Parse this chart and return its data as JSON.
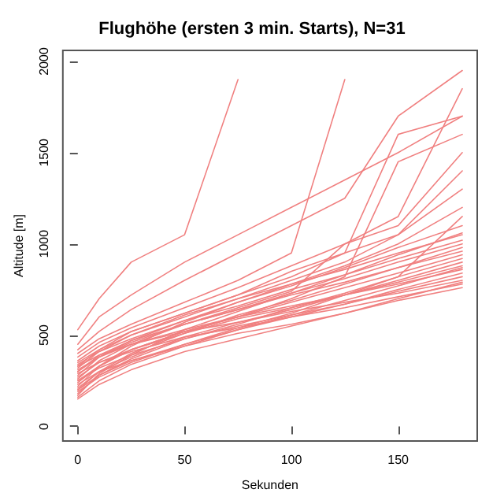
{
  "chart_data": {
    "type": "line",
    "title": "Flughöhe (ersten 3 min. Starts), N=31",
    "xlabel": "Sekunden",
    "ylabel": "Altitude [m]",
    "x": [
      0,
      10,
      25,
      50,
      75,
      100,
      125,
      150,
      180
    ],
    "xlim": [
      -7,
      187
    ],
    "xticks": [
      0,
      50,
      100,
      150
    ],
    "ylim": [
      -80,
      2060
    ],
    "yticks": [
      0,
      500,
      1000,
      1500,
      2000
    ],
    "grid": false,
    "marker": "none",
    "line_style": "solid",
    "series": [
      {
        "color": "#f08080",
        "values": [
          530,
          700,
          900,
          1050,
          1900,
          null,
          null,
          null,
          null
        ]
      },
      {
        "color": "#f08080",
        "values": [
          450,
          600,
          720,
          900,
          1050,
          1200,
          1350,
          1500,
          1700
        ]
      },
      {
        "color": "#f08080",
        "values": [
          420,
          520,
          640,
          800,
          950,
          1100,
          1250,
          1700,
          1950
        ]
      },
      {
        "color": "#f08080",
        "values": [
          400,
          480,
          560,
          680,
          800,
          950,
          1900,
          null,
          null
        ]
      },
      {
        "color": "#f08080",
        "values": [
          380,
          460,
          540,
          650,
          760,
          880,
          1000,
          1150,
          1850
        ]
      },
      {
        "color": "#f08080",
        "values": [
          360,
          440,
          520,
          620,
          720,
          850,
          950,
          1600,
          1700
        ]
      },
      {
        "color": "#f08080",
        "values": [
          350,
          420,
          500,
          600,
          700,
          800,
          900,
          1050,
          1400
        ]
      },
      {
        "color": "#f08080",
        "values": [
          340,
          410,
          480,
          580,
          680,
          780,
          880,
          1000,
          1200
        ]
      },
      {
        "color": "#f08080",
        "values": [
          330,
          390,
          450,
          520,
          570,
          630,
          680,
          730,
          800
        ]
      },
      {
        "color": "#f08080",
        "values": [
          320,
          410,
          500,
          610,
          700,
          780,
          860,
          950,
          1050
        ]
      },
      {
        "color": "#f08080",
        "values": [
          310,
          380,
          450,
          530,
          600,
          660,
          720,
          780,
          860
        ]
      },
      {
        "color": "#f08080",
        "values": [
          300,
          390,
          470,
          560,
          640,
          720,
          790,
          870,
          960
        ]
      },
      {
        "color": "#f08080",
        "values": [
          290,
          350,
          410,
          490,
          540,
          600,
          650,
          710,
          780
        ]
      },
      {
        "color": "#f08080",
        "values": [
          280,
          380,
          470,
          580,
          660,
          750,
          830,
          920,
          1020
        ]
      },
      {
        "color": "#f08080",
        "values": [
          270,
          350,
          420,
          510,
          590,
          650,
          720,
          790,
          880
        ]
      },
      {
        "color": "#f08080",
        "values": [
          260,
          360,
          450,
          560,
          640,
          730,
          810,
          900,
          1000
        ]
      },
      {
        "color": "#f08080",
        "values": [
          250,
          320,
          390,
          480,
          550,
          610,
          670,
          740,
          820
        ]
      },
      {
        "color": "#f08080",
        "values": [
          240,
          330,
          420,
          520,
          600,
          680,
          760,
          840,
          940
        ]
      },
      {
        "color": "#f08080",
        "values": [
          230,
          300,
          360,
          440,
          510,
          560,
          620,
          690,
          760
        ]
      },
      {
        "color": "#f08080",
        "values": [
          220,
          330,
          440,
          570,
          680,
          770,
          870,
          980,
          1100
        ]
      },
      {
        "color": "#f08080",
        "values": [
          210,
          300,
          380,
          490,
          570,
          640,
          720,
          800,
          900
        ]
      },
      {
        "color": "#f08080",
        "values": [
          200,
          300,
          400,
          510,
          610,
          690,
          780,
          870,
          980
        ]
      },
      {
        "color": "#f08080",
        "values": [
          190,
          270,
          350,
          450,
          530,
          600,
          670,
          750,
          840
        ]
      },
      {
        "color": "#f08080",
        "values": [
          180,
          280,
          370,
          480,
          560,
          650,
          730,
          820,
          920
        ]
      },
      {
        "color": "#f08080",
        "values": [
          170,
          290,
          390,
          530,
          630,
          730,
          830,
          940,
          1060
        ]
      },
      {
        "color": "#f08080",
        "values": [
          160,
          250,
          340,
          440,
          530,
          610,
          690,
          770,
          870
        ]
      },
      {
        "color": "#f08080",
        "values": [
          150,
          230,
          310,
          410,
          480,
          550,
          620,
          700,
          790
        ]
      },
      {
        "color": "#f08080",
        "values": [
          300,
          380,
          460,
          560,
          650,
          740,
          1000,
          1100,
          1500
        ]
      },
      {
        "color": "#f08080",
        "values": [
          250,
          330,
          420,
          520,
          600,
          700,
          820,
          1450,
          1600
        ]
      },
      {
        "color": "#f08080",
        "values": [
          330,
          420,
          520,
          620,
          720,
          820,
          950,
          1050,
          1300
        ]
      },
      {
        "color": "#f08080",
        "values": [
          200,
          280,
          360,
          450,
          540,
          620,
          720,
          820,
          1150
        ]
      }
    ]
  }
}
